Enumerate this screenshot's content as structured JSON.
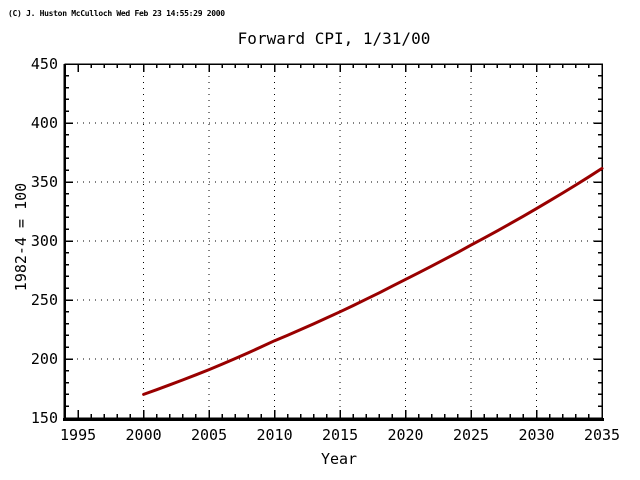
{
  "window": {
    "copyright": "(C) J. Huston McCulloch Wed Feb 23 14:55:29 2000"
  },
  "chart_data": {
    "type": "line",
    "title": "Forward CPI, 1/31/00",
    "xlabel": "Year",
    "ylabel": "1982-4 = 100",
    "xlim": [
      1994,
      2035
    ],
    "ylim": [
      150,
      450
    ],
    "x_major_ticks": [
      1995,
      2000,
      2005,
      2010,
      2015,
      2020,
      2025,
      2030,
      2035
    ],
    "x_minor_step": 1,
    "y_major_ticks": [
      150,
      200,
      250,
      300,
      350,
      400,
      450
    ],
    "y_minor_step": 10,
    "x_gridlines": [
      2000,
      2005,
      2010,
      2015,
      2020,
      2025,
      2030
    ],
    "y_gridlines": [
      200,
      250,
      300,
      350,
      400
    ],
    "grid_style": "dotted",
    "legend": "none",
    "frame_color": "#000000",
    "text_color": "#000000",
    "background": "#ffffff",
    "series": [
      {
        "name": "Forward CPI",
        "color": "#990000",
        "line_width": 3,
        "points": [
          [
            2000,
            170.0
          ],
          [
            2005,
            191.0
          ],
          [
            2010,
            215.5
          ],
          [
            2015,
            240.0
          ],
          [
            2020,
            267.5
          ],
          [
            2025,
            296.5
          ],
          [
            2030,
            327.5
          ],
          [
            2035,
            361.5
          ]
        ]
      }
    ]
  }
}
